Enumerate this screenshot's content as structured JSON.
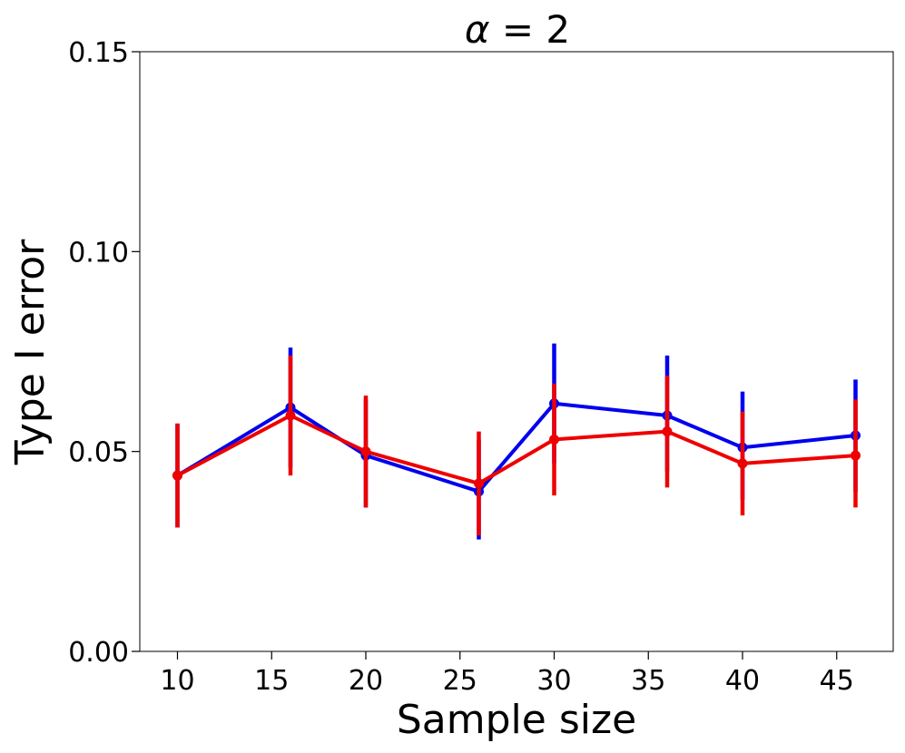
{
  "chart_data": {
    "type": "line",
    "title": "α = 2",
    "title_italic_symbol": "α",
    "title_rest": " = 2",
    "xlabel": "Sample size",
    "ylabel": "Type I error",
    "xlim": [
      8,
      48
    ],
    "ylim": [
      0,
      0.15
    ],
    "x_ticks": [
      10,
      15,
      20,
      25,
      30,
      35,
      40,
      45
    ],
    "x_tick_labels": [
      "10",
      "15",
      "20",
      "25",
      "30",
      "35",
      "40",
      "45"
    ],
    "y_ticks": [
      0,
      0.05,
      0.1,
      0.15
    ],
    "y_tick_labels": [
      "0.00",
      "0.05",
      "0.10",
      "0.15"
    ],
    "grid": false,
    "x": [
      10,
      16,
      20,
      26,
      30,
      36,
      40,
      46
    ],
    "series": [
      {
        "name": "blue",
        "color": "#0000ee",
        "values": [
          0.044,
          0.061,
          0.049,
          0.04,
          0.062,
          0.059,
          0.051,
          0.054
        ],
        "err_low": [
          0.031,
          0.046,
          0.036,
          0.028,
          0.047,
          0.045,
          0.038,
          0.04
        ],
        "err_high": [
          0.057,
          0.076,
          0.063,
          0.053,
          0.077,
          0.074,
          0.065,
          0.068
        ]
      },
      {
        "name": "red",
        "color": "#ee0000",
        "values": [
          0.044,
          0.059,
          0.05,
          0.042,
          0.053,
          0.055,
          0.047,
          0.049
        ],
        "err_low": [
          0.031,
          0.044,
          0.036,
          0.029,
          0.039,
          0.041,
          0.034,
          0.036
        ],
        "err_high": [
          0.057,
          0.074,
          0.064,
          0.055,
          0.067,
          0.069,
          0.06,
          0.063
        ]
      }
    ]
  }
}
